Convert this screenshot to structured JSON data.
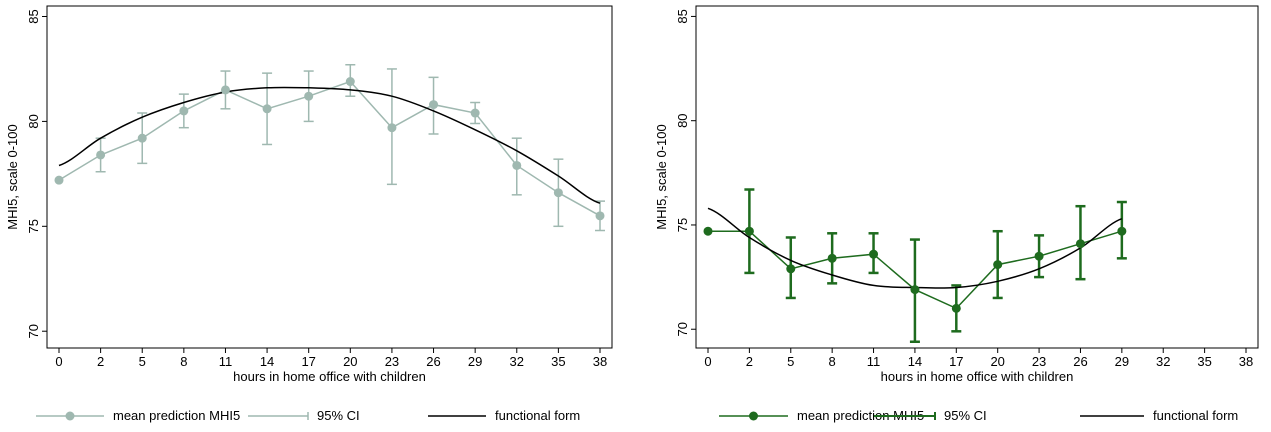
{
  "chart_data": [
    {
      "type": "line",
      "xlabel": "hours in home office with children",
      "ylabel": "MHI5, scale 0-100",
      "xticks": [
        "0",
        "2",
        "5",
        "8",
        "11",
        "14",
        "17",
        "20",
        "23",
        "26",
        "29",
        "32",
        "35",
        "38"
      ],
      "yticks": [
        70,
        75,
        80,
        85
      ],
      "ylim": [
        69.2,
        85.5
      ],
      "grid": false,
      "legend_position": "bottom",
      "colors": {
        "series": "#9fb8b0",
        "fit": "#000000"
      },
      "series": [
        {
          "name": "mean prediction MHI5",
          "values": [
            77.2,
            78.4,
            79.2,
            80.5,
            81.5,
            80.6,
            81.2,
            81.9,
            79.7,
            80.8,
            80.4,
            77.9,
            76.6,
            75.5
          ]
        },
        {
          "name": "95% CI",
          "lower": [
            77.2,
            77.6,
            78.0,
            79.7,
            80.6,
            78.9,
            80.0,
            81.2,
            77.0,
            79.4,
            79.9,
            76.5,
            75.0,
            74.8
          ],
          "upper": [
            77.2,
            79.2,
            80.4,
            81.3,
            82.4,
            82.3,
            82.4,
            82.7,
            82.5,
            82.1,
            80.9,
            79.2,
            78.2,
            76.2
          ]
        },
        {
          "name": "functional form",
          "values": [
            77.9,
            79.2,
            80.2,
            80.9,
            81.4,
            81.6,
            81.6,
            81.5,
            81.2,
            80.5,
            79.6,
            78.6,
            77.4,
            76.1
          ]
        }
      ]
    },
    {
      "type": "line",
      "xlabel": "hours in home office with children",
      "ylabel": "MHI5, scale 0-100",
      "xticks": [
        "0",
        "2",
        "5",
        "8",
        "11",
        "14",
        "17",
        "20",
        "23",
        "26",
        "29",
        "32",
        "35",
        "38"
      ],
      "yticks": [
        70,
        75,
        80,
        85
      ],
      "ylim": [
        69.1,
        85.5
      ],
      "grid": false,
      "legend_position": "bottom",
      "colors": {
        "series": "#1e6b1e",
        "fit": "#000000"
      },
      "series": [
        {
          "name": "mean prediction MHI5",
          "values": [
            74.7,
            74.7,
            72.9,
            73.4,
            73.6,
            71.9,
            71.0,
            73.1,
            73.5,
            74.1,
            74.7
          ]
        },
        {
          "name": "95% CI",
          "lower": [
            74.7,
            72.7,
            71.5,
            72.2,
            72.7,
            69.4,
            69.9,
            71.5,
            72.5,
            72.4,
            73.4
          ],
          "upper": [
            74.7,
            76.7,
            74.4,
            74.6,
            74.6,
            74.3,
            72.1,
            74.7,
            74.5,
            75.9,
            76.1
          ]
        },
        {
          "name": "functional form",
          "values": [
            75.8,
            74.4,
            73.3,
            72.6,
            72.1,
            72.0,
            72.0,
            72.3,
            72.9,
            73.9,
            75.3
          ]
        }
      ]
    }
  ]
}
